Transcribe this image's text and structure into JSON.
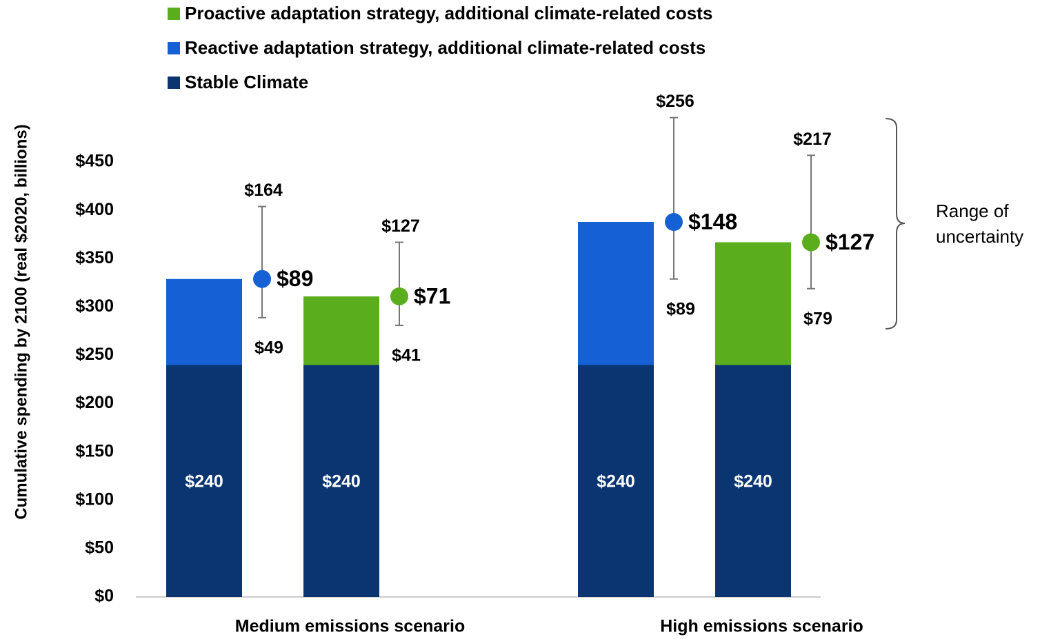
{
  "chart_data": {
    "type": "stacked_bar_with_ranges",
    "y_label": "Cumulative spending by 2100 (real $2020, billions)",
    "categories": [
      "Medium emissions scenario",
      "High emissions scenario"
    ],
    "ylim": [
      0,
      500
    ],
    "yticks": [
      {
        "value": 0,
        "label": "$0"
      },
      {
        "value": 50,
        "label": "$50"
      },
      {
        "value": 100,
        "label": "$100"
      },
      {
        "value": 150,
        "label": "$150"
      },
      {
        "value": 200,
        "label": "$200"
      },
      {
        "value": 250,
        "label": "$250"
      },
      {
        "value": 300,
        "label": "$300"
      },
      {
        "value": 350,
        "label": "$350"
      },
      {
        "value": 400,
        "label": "$400"
      },
      {
        "value": 450,
        "label": "$450"
      }
    ],
    "base": {
      "name": "Stable Climate",
      "color": "#0a3570",
      "values": [
        [
          240,
          240
        ],
        [
          240,
          240
        ]
      ],
      "value_labels": [
        [
          "$240",
          "$240"
        ],
        [
          "$240",
          "$240"
        ]
      ]
    },
    "series": [
      {
        "name": "Reactive adaptation strategy, additional climate-related costs",
        "color": "#1560d4",
        "values": [
          89,
          148
        ],
        "value_labels": [
          "$89",
          "$148"
        ],
        "low": [
          49,
          89
        ],
        "low_labels": [
          "$49",
          "$89"
        ],
        "high": [
          164,
          256
        ],
        "high_labels": [
          "$164",
          "$256"
        ]
      },
      {
        "name": "Proactive adaptation strategy, additional climate-related costs",
        "color": "#5aae1d",
        "values": [
          71,
          127
        ],
        "value_labels": [
          "$71",
          "$127"
        ],
        "low": [
          41,
          79
        ],
        "low_labels": [
          "$41",
          "$79"
        ],
        "high": [
          127,
          217
        ],
        "high_labels": [
          "$127",
          "$217"
        ]
      }
    ],
    "legend_order": [
      "series.1",
      "series.0",
      "base"
    ],
    "annotation": [
      "Range of",
      "uncertainty"
    ]
  }
}
